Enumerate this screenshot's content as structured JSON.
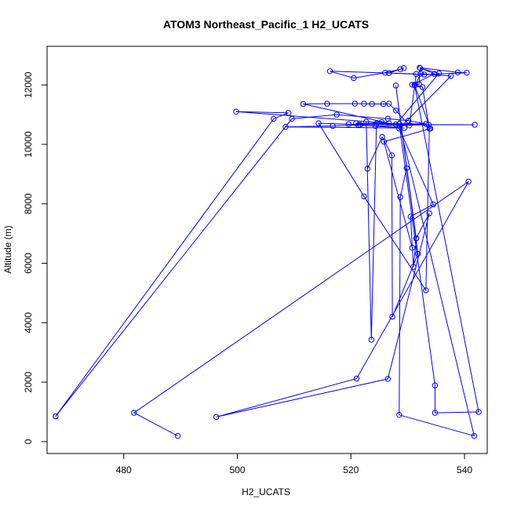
{
  "chart_data": {
    "type": "line",
    "title": "ATOM3 Northeast_Pacific_1 H2_UCATS",
    "xlabel": "H2_UCATS",
    "ylabel": "Altitude (m)",
    "xlim": [
      466.5,
      544.0
    ],
    "ylim": [
      -400,
      13300
    ],
    "xticks": [
      480,
      500,
      520,
      540
    ],
    "yticks": [
      0,
      2000,
      4000,
      6000,
      8000,
      10000,
      12000
    ],
    "x_tick_labels": [
      "480",
      "500",
      "520",
      "540"
    ],
    "y_tick_labels": [
      "0",
      "2000",
      "4000",
      "6000",
      "8000",
      "10000",
      "12000"
    ],
    "grid": false,
    "series_color": "#0000ff",
    "markers": "open-circle",
    "series": [
      {
        "points": [
          [
            489.5,
            190
          ],
          [
            481.8,
            970
          ],
          [
            540.7,
            8750
          ],
          [
            521.0,
            2120
          ],
          [
            496.3,
            830
          ],
          [
            526.5,
            2110
          ],
          [
            533.8,
            7680
          ],
          [
            531.5,
            6840
          ],
          [
            531.0,
            5880
          ],
          [
            530.5,
            7570
          ],
          [
            534.5,
            7980
          ],
          [
            528.5,
            10530
          ],
          [
            537.6,
            12300
          ],
          [
            532.3,
            12380
          ],
          [
            531.3,
            12000
          ],
          [
            532.0,
            12020
          ],
          [
            532.2,
            12560
          ],
          [
            535.5,
            12390
          ],
          [
            527.9,
            10670
          ],
          [
            525.4,
            10750
          ],
          [
            521.3,
            10650
          ],
          [
            529.4,
            10550
          ],
          [
            508.5,
            10590
          ],
          [
            516.8,
            10620
          ],
          [
            521.6,
            10660
          ],
          [
            524.3,
            10620
          ],
          [
            533.7,
            10660
          ],
          [
            541.8,
            10660
          ],
          [
            519.6,
            10680
          ],
          [
            514.3,
            10710
          ],
          [
            522.3,
            8250
          ],
          [
            533.2,
            5090
          ],
          [
            533.8,
            10530
          ],
          [
            532.6,
            11930
          ],
          [
            530.8,
            12010
          ],
          [
            534.7,
            12370
          ],
          [
            532.1,
            12580
          ],
          [
            538.8,
            12420
          ],
          [
            540.4,
            12410
          ],
          [
            532.9,
            12350
          ],
          [
            526.7,
            12400
          ],
          [
            529.3,
            12570
          ],
          [
            528.7,
            12530
          ],
          [
            526.0,
            12410
          ],
          [
            520.5,
            12230
          ],
          [
            516.3,
            12460
          ],
          [
            531.5,
            12370
          ],
          [
            530.3,
            10640
          ],
          [
            527.9,
            11140
          ],
          [
            526.7,
            11370
          ],
          [
            525.7,
            11360
          ],
          [
            523.7,
            11360
          ],
          [
            522.3,
            11370
          ],
          [
            520.7,
            11370
          ],
          [
            515.8,
            11370
          ],
          [
            511.6,
            11360
          ],
          [
            526.7,
            10710
          ],
          [
            499.8,
            11100
          ],
          [
            509.0,
            11060
          ],
          [
            506.4,
            10860
          ],
          [
            468.0,
            850
          ],
          [
            509.6,
            10860
          ],
          [
            517.5,
            11000
          ],
          [
            526.5,
            10860
          ],
          [
            530.1,
            10800
          ],
          [
            533.2,
            10690
          ],
          [
            520.9,
            10710
          ],
          [
            524.5,
            10700
          ],
          [
            523.6,
            3430
          ],
          [
            522.7,
            10760
          ],
          [
            522.9,
            9180
          ],
          [
            525.5,
            10250
          ],
          [
            527.2,
            9630
          ],
          [
            527.3,
            4200
          ],
          [
            531.8,
            6320
          ],
          [
            527.9,
            11980
          ],
          [
            531.5,
            6840
          ],
          [
            529.8,
            9200
          ],
          [
            528.7,
            8230
          ],
          [
            528.5,
            900
          ],
          [
            541.7,
            190
          ],
          [
            528.5,
            10690
          ],
          [
            534.8,
            1890
          ],
          [
            534.8,
            970
          ],
          [
            542.5,
            1000
          ],
          [
            531.2,
            12000
          ],
          [
            534.0,
            10530
          ],
          [
            525.8,
            10090
          ],
          [
            530.8,
            6520
          ]
        ]
      }
    ]
  }
}
